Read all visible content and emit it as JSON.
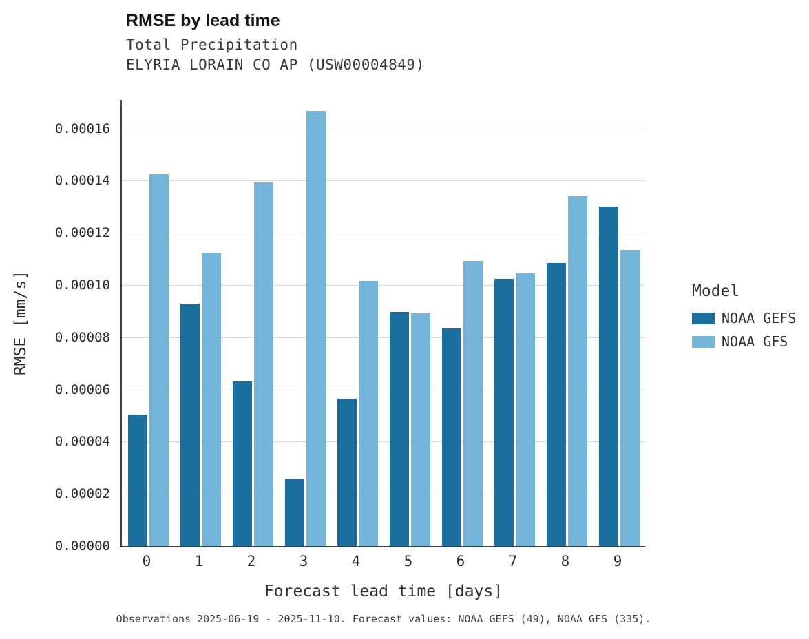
{
  "header": {
    "title": "RMSE by lead time",
    "subtitle1": "Total Precipitation",
    "subtitle2": "ELYRIA LORAIN CO AP (USW00004849)"
  },
  "caption": "Observations 2025-06-19 - 2025-11-10. Forecast values: NOAA GEFS (49), NOAA GFS (335).",
  "legend": {
    "title": "Model",
    "entries": [
      {
        "label": "NOAA GEFS",
        "color": "#1b6d9e"
      },
      {
        "label": "NOAA GFS",
        "color": "#74b4d9"
      }
    ]
  },
  "colors": {
    "gefs": "#1b6d9e",
    "gfs": "#74b4d9",
    "grid": "#d6d6d6",
    "spine": "#3f3f3f"
  },
  "chart_data": {
    "type": "bar",
    "title": "RMSE by lead time",
    "subtitle": "Total Precipitation — ELYRIA LORAIN CO AP (USW00004849)",
    "xlabel": "Forecast lead time [days]",
    "ylabel": "RMSE [mm/s]",
    "categories": [
      0,
      1,
      2,
      3,
      4,
      5,
      6,
      7,
      8,
      9
    ],
    "series": [
      {
        "name": "NOAA GEFS",
        "color": "#1b6d9e",
        "values": [
          5.05e-05,
          9.3e-05,
          6.3e-05,
          2.55e-05,
          5.65e-05,
          8.97e-05,
          8.35e-05,
          0.0001025,
          0.0001085,
          0.00013
        ]
      },
      {
        "name": "NOAA GFS",
        "color": "#74b4d9",
        "values": [
          0.0001425,
          0.0001125,
          0.0001393,
          0.0001667,
          0.0001015,
          8.93e-05,
          0.0001093,
          0.0001045,
          0.000134,
          0.0001135
        ]
      }
    ],
    "ylim": [
      0,
      0.000171
    ],
    "yticks": [
      0.0,
      2e-05,
      4e-05,
      6e-05,
      8e-05,
      0.0001,
      0.00012,
      0.00014,
      0.00016
    ],
    "ytick_format_decimals": 5,
    "grid": true,
    "legend_position": "right"
  }
}
